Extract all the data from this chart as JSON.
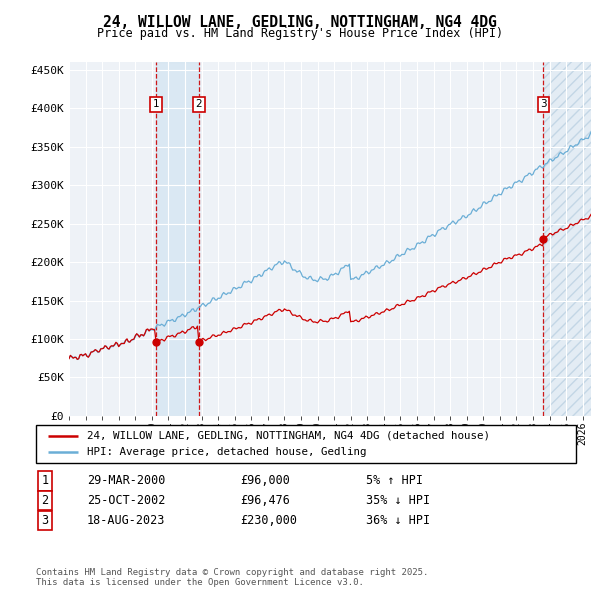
{
  "title1": "24, WILLOW LANE, GEDLING, NOTTINGHAM, NG4 4DG",
  "title2": "Price paid vs. HM Land Registry's House Price Index (HPI)",
  "ylim": [
    0,
    460000
  ],
  "xlim_start": 1995.0,
  "xlim_end": 2026.5,
  "sale1": {
    "date_num": 2000.24,
    "price": 96000,
    "label": "1",
    "date_str": "29-MAR-2000",
    "price_str": "£96,000",
    "hpi_str": "5% ↑ HPI"
  },
  "sale2": {
    "date_num": 2002.82,
    "price": 96476,
    "label": "2",
    "date_str": "25-OCT-2002",
    "price_str": "£96,476",
    "hpi_str": "35% ↓ HPI"
  },
  "sale3": {
    "date_num": 2023.63,
    "price": 230000,
    "label": "3",
    "date_str": "18-AUG-2023",
    "price_str": "£230,000",
    "hpi_str": "36% ↓ HPI"
  },
  "hpi_color": "#6baed6",
  "price_color": "#cc0000",
  "bg_color": "#eef2f7",
  "legend1": "24, WILLOW LANE, GEDLING, NOTTINGHAM, NG4 4DG (detached house)",
  "legend2": "HPI: Average price, detached house, Gedling",
  "footnote": "Contains HM Land Registry data © Crown copyright and database right 2025.\nThis data is licensed under the Open Government Licence v3.0."
}
